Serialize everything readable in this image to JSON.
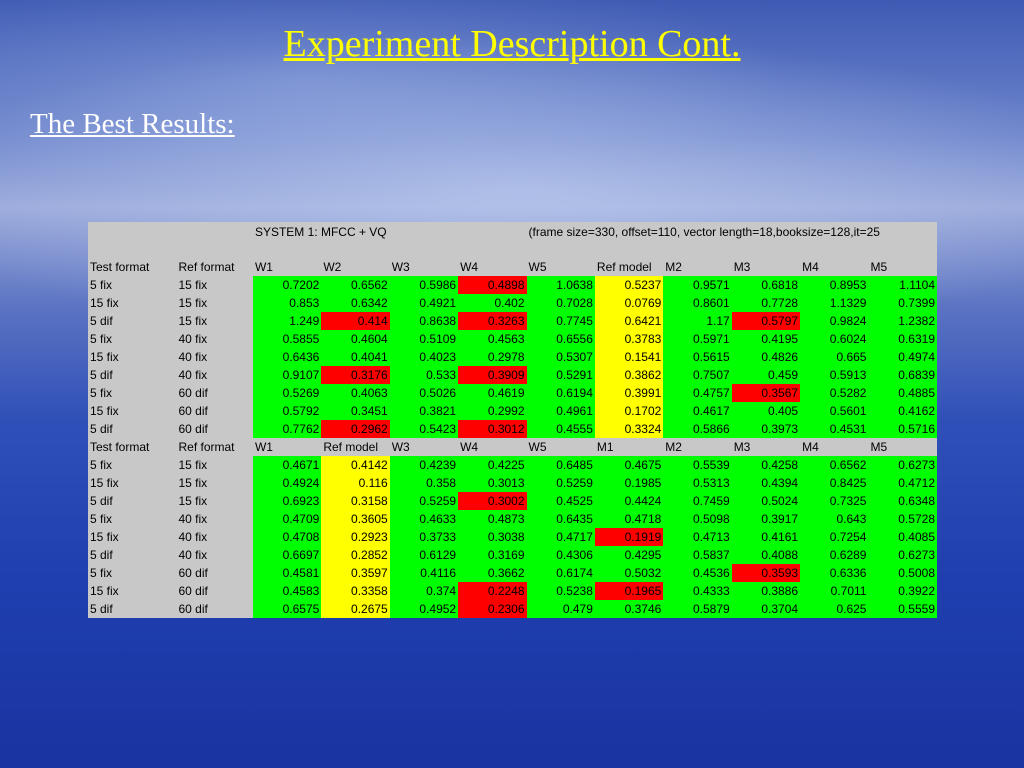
{
  "slide": {
    "title": "Experiment Description Cont. ",
    "subtitle": "The Best Results:"
  },
  "table": {
    "system_label": "SYSTEM 1: MFCC + VQ",
    "params_label": "(frame size=330, offset=110, vector length=18,booksize=128,it=25",
    "colors": {
      "normal": "#00ff00",
      "reference": "#ffff00",
      "best": "#ff0000",
      "label_bg": "#c8c8c8"
    },
    "sections": [
      {
        "headers": [
          "Test format",
          "Ref format",
          "W1",
          "W2",
          "W3",
          "W4",
          "W5",
          "Ref model",
          "M2",
          "M3",
          "M4",
          "M5"
        ],
        "ref_column_index": 5,
        "rows": [
          {
            "test": "5 fix",
            "ref": "15 fix",
            "values": [
              "0.7202",
              "0.6562",
              "0.5986",
              "0.4898",
              "1.0638",
              "0.5237",
              "0.9571",
              "0.6818",
              "0.8953",
              "1.1104"
            ],
            "highlight": [
              3
            ]
          },
          {
            "test": "15 fix",
            "ref": "15 fix",
            "values": [
              "0.853",
              "0.6342",
              "0.4921",
              "0.402",
              "0.7028",
              "0.0769",
              "0.8601",
              "0.7728",
              "1.1329",
              "0.7399"
            ],
            "highlight": []
          },
          {
            "test": "5 dif",
            "ref": "15 fix",
            "values": [
              "1.249",
              "0.414",
              "0.8638",
              "0.3263",
              "0.7745",
              "0.6421",
              "1.17",
              "0.5797",
              "0.9824",
              "1.2382"
            ],
            "highlight": [
              1,
              3,
              7
            ]
          },
          {
            "test": "5 fix",
            "ref": "40 fix",
            "values": [
              "0.5855",
              "0.4604",
              "0.5109",
              "0.4563",
              "0.6556",
              "0.3783",
              "0.5971",
              "0.4195",
              "0.6024",
              "0.6319"
            ],
            "highlight": []
          },
          {
            "test": "15 fix",
            "ref": "40 fix",
            "values": [
              "0.6436",
              "0.4041",
              "0.4023",
              "0.2978",
              "0.5307",
              "0.1541",
              "0.5615",
              "0.4826",
              "0.665",
              "0.4974"
            ],
            "highlight": []
          },
          {
            "test": "5 dif",
            "ref": "40 fix",
            "values": [
              "0.9107",
              "0.3176",
              "0.533",
              "0.3909",
              "0.5291",
              "0.3862",
              "0.7507",
              "0.459",
              "0.5913",
              "0.6839"
            ],
            "highlight": [
              1,
              3
            ]
          },
          {
            "test": "5 fix",
            "ref": "60 dif",
            "values": [
              "0.5269",
              "0.4063",
              "0.5026",
              "0.4619",
              "0.6194",
              "0.3991",
              "0.4757",
              "0.3567",
              "0.5282",
              "0.4885"
            ],
            "highlight": [
              7
            ]
          },
          {
            "test": "15 fix",
            "ref": "60 dif",
            "values": [
              "0.5792",
              "0.3451",
              "0.3821",
              "0.2992",
              "0.4961",
              "0.1702",
              "0.4617",
              "0.405",
              "0.5601",
              "0.4162"
            ],
            "highlight": []
          },
          {
            "test": "5 dif",
            "ref": "60 dif",
            "values": [
              "0.7762",
              "0.2962",
              "0.5423",
              "0.3012",
              "0.4555",
              "0.3324",
              "0.5866",
              "0.3973",
              "0.4531",
              "0.5716"
            ],
            "highlight": [
              1,
              3
            ]
          }
        ]
      },
      {
        "headers": [
          "Test format",
          "Ref format",
          "W1",
          "Ref model",
          "W3",
          "W4",
          "W5",
          "M1",
          "M2",
          "M3",
          "M4",
          "M5"
        ],
        "ref_column_index": 1,
        "rows": [
          {
            "test": "5 fix",
            "ref": "15 fix",
            "values": [
              "0.4671",
              "0.4142",
              "0.4239",
              "0.4225",
              "0.6485",
              "0.4675",
              "0.5539",
              "0.4258",
              "0.6562",
              "0.6273"
            ],
            "highlight": []
          },
          {
            "test": "15 fix",
            "ref": "15 fix",
            "values": [
              "0.4924",
              "0.116",
              "0.358",
              "0.3013",
              "0.5259",
              "0.1985",
              "0.5313",
              "0.4394",
              "0.8425",
              "0.4712"
            ],
            "highlight": []
          },
          {
            "test": "5 dif",
            "ref": "15 fix",
            "values": [
              "0.6923",
              "0.3158",
              "0.5259",
              "0.3002",
              "0.4525",
              "0.4424",
              "0.7459",
              "0.5024",
              "0.7325",
              "0.6348"
            ],
            "highlight": [
              3
            ]
          },
          {
            "test": "5 fix",
            "ref": "40 fix",
            "values": [
              "0.4709",
              "0.3605",
              "0.4633",
              "0.4873",
              "0.6435",
              "0.4718",
              "0.5098",
              "0.3917",
              "0.643",
              "0.5728"
            ],
            "highlight": []
          },
          {
            "test": "15 fix",
            "ref": "40 fix",
            "values": [
              "0.4708",
              "0.2923",
              "0.3733",
              "0.3038",
              "0.4717",
              "0.1919",
              "0.4713",
              "0.4161",
              "0.7254",
              "0.4085"
            ],
            "highlight": [
              5
            ]
          },
          {
            "test": "5 dif",
            "ref": "40 fix",
            "values": [
              "0.6697",
              "0.2852",
              "0.6129",
              "0.3169",
              "0.4306",
              "0.4295",
              "0.5837",
              "0.4088",
              "0.6289",
              "0.6273"
            ],
            "highlight": []
          },
          {
            "test": "5 fix",
            "ref": "60 dif",
            "values": [
              "0.4581",
              "0.3597",
              "0.4116",
              "0.3662",
              "0.6174",
              "0.5032",
              "0.4536",
              "0.3593",
              "0.6336",
              "0.5008"
            ],
            "highlight": [
              7
            ]
          },
          {
            "test": "15 fix",
            "ref": "60 dif",
            "values": [
              "0.4583",
              "0.3358",
              "0.374",
              "0.2248",
              "0.5238",
              "0.1965",
              "0.4333",
              "0.3886",
              "0.7011",
              "0.3922"
            ],
            "highlight": [
              3,
              5
            ]
          },
          {
            "test": "5 dif",
            "ref": "60 dif",
            "values": [
              "0.6575",
              "0.2675",
              "0.4952",
              "0.2306",
              "0.479",
              "0.3746",
              "0.5879",
              "0.3704",
              "0.625",
              "0.5559"
            ],
            "highlight": [
              3
            ]
          }
        ]
      }
    ]
  }
}
